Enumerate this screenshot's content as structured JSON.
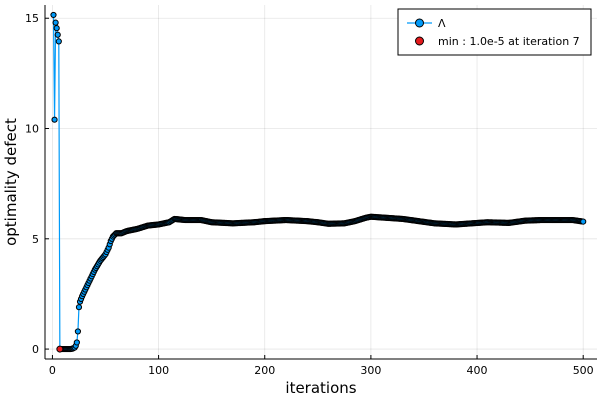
{
  "chart_data": {
    "type": "line",
    "title": "",
    "xlabel": "iterations",
    "ylabel": "optimality defect",
    "xlim": [
      -7,
      513
    ],
    "ylim": [
      -0.45,
      15.6
    ],
    "xticks": [
      0,
      100,
      200,
      300,
      400,
      500
    ],
    "yticks": [
      0,
      5,
      10,
      15
    ],
    "grid": true,
    "legend_position": "top-right",
    "series": [
      {
        "name": "Λ",
        "color": "#009AF9",
        "marker": "circle",
        "control_points": [
          [
            1,
            15.15
          ],
          [
            2,
            10.4
          ],
          [
            3,
            14.8
          ],
          [
            4,
            14.55
          ],
          [
            5,
            14.25
          ],
          [
            6,
            13.95
          ],
          [
            7,
            1e-05
          ],
          [
            9,
            0.0
          ],
          [
            11,
            0.0
          ],
          [
            13,
            0.0
          ],
          [
            15,
            0.0
          ],
          [
            17,
            0.0
          ],
          [
            19,
            0.02
          ],
          [
            21,
            0.07
          ],
          [
            22,
            0.15
          ],
          [
            23,
            0.3
          ],
          [
            24,
            0.8
          ],
          [
            25,
            1.9
          ],
          [
            26,
            2.15
          ],
          [
            28,
            2.4
          ],
          [
            30,
            2.6
          ],
          [
            33,
            2.9
          ],
          [
            36,
            3.2
          ],
          [
            40,
            3.6
          ],
          [
            45,
            4.0
          ],
          [
            50,
            4.3
          ],
          [
            53,
            4.6
          ],
          [
            55,
            4.9
          ],
          [
            57,
            5.1
          ],
          [
            60,
            5.25
          ],
          [
            65,
            5.25
          ],
          [
            70,
            5.35
          ],
          [
            80,
            5.45
          ],
          [
            90,
            5.6
          ],
          [
            100,
            5.65
          ],
          [
            110,
            5.75
          ],
          [
            115,
            5.9
          ],
          [
            125,
            5.85
          ],
          [
            140,
            5.85
          ],
          [
            150,
            5.75
          ],
          [
            170,
            5.7
          ],
          [
            190,
            5.75
          ],
          [
            200,
            5.8
          ],
          [
            220,
            5.85
          ],
          [
            240,
            5.8
          ],
          [
            250,
            5.75
          ],
          [
            260,
            5.68
          ],
          [
            275,
            5.7
          ],
          [
            285,
            5.8
          ],
          [
            295,
            5.95
          ],
          [
            300,
            6.0
          ],
          [
            315,
            5.95
          ],
          [
            330,
            5.9
          ],
          [
            345,
            5.8
          ],
          [
            360,
            5.7
          ],
          [
            380,
            5.65
          ],
          [
            395,
            5.7
          ],
          [
            410,
            5.75
          ],
          [
            430,
            5.72
          ],
          [
            445,
            5.82
          ],
          [
            460,
            5.85
          ],
          [
            475,
            5.85
          ],
          [
            490,
            5.85
          ],
          [
            500,
            5.78
          ]
        ]
      },
      {
        "name": "min : 1.0e-5 at iteration 7",
        "color": "#E41A1C",
        "marker": "circle",
        "points": [
          [
            7,
            1e-05
          ]
        ]
      }
    ]
  }
}
